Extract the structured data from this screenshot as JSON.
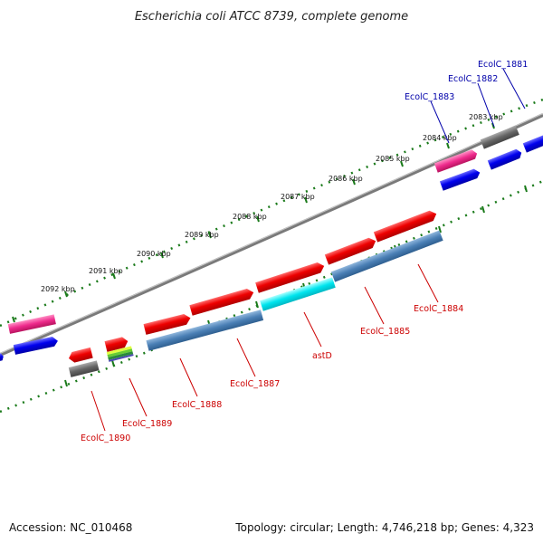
{
  "title": "Escherichia coli ATCC 8739, complete genome",
  "ticks": [
    "2083 kbp",
    "2084 kbp",
    "2085 kbp",
    "2086 kbp",
    "2087 kbp",
    "2088 kbp",
    "2089 kbp",
    "2090 kbp",
    "2091 kbp",
    "2092 kbp"
  ],
  "labels_top": [
    "EcolC_1881",
    "EcolC_1882",
    "EcolC_1883"
  ],
  "labels_bottom": [
    "EcolC_1884",
    "EcolC_1885",
    "astD",
    "EcolC_1887",
    "EcolC_1888",
    "EcolC_1889",
    "EcolC_1890"
  ],
  "colors": {
    "top_labels": "#0000aa",
    "bottom_labels": "#cc0000",
    "cds_red": "#ee0000",
    "cds_blue": "#0000ee",
    "gene_steelblue": "#4a7fb5",
    "gene_cyan": "#00e5ee",
    "gene_magenta": "#ee2a8c",
    "gene_gray": "#666666",
    "backbone": "#7a7a7a",
    "ticks_green": "#1a7a1a"
  },
  "footer": {
    "accession": "Accession: NC_010468",
    "topology": "Topology: circular; Length: 4,746,218 bp; Genes: 4,323"
  }
}
